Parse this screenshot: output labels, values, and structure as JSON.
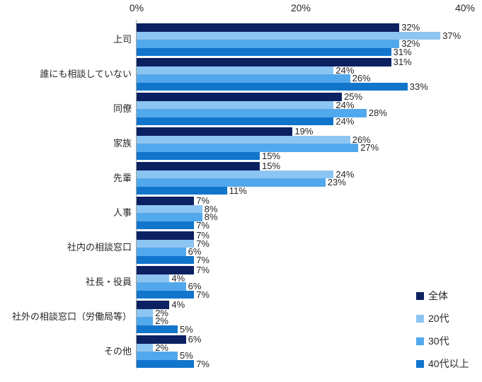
{
  "chart_data": {
    "type": "bar",
    "orientation": "horizontal",
    "title": "",
    "categories": [
      "上司",
      "誰にも相談していない",
      "同僚",
      "家族",
      "先輩",
      "人事",
      "社内の相談窓口",
      "社長・役員",
      "社外の相談窓口（労働局等）",
      "その他"
    ],
    "series": [
      {
        "name": "全体",
        "color": "#0B2161",
        "values": [
          32,
          31,
          25,
          19,
          15,
          7,
          7,
          7,
          4,
          6
        ]
      },
      {
        "name": "20代",
        "color": "#8DC5F2",
        "values": [
          37,
          24,
          24,
          26,
          24,
          8,
          7,
          4,
          2,
          2
        ]
      },
      {
        "name": "30代",
        "color": "#52A8EC",
        "values": [
          32,
          26,
          28,
          27,
          23,
          8,
          6,
          6,
          2,
          5
        ]
      },
      {
        "name": "40代以上",
        "color": "#1175CC",
        "values": [
          31,
          33,
          24,
          15,
          11,
          7,
          7,
          7,
          5,
          7
        ]
      }
    ],
    "x_axis": {
      "min": 0,
      "max": 40,
      "tick_values": [
        0,
        20,
        40
      ],
      "tick_labels": [
        "0%",
        "20%",
        "40%"
      ]
    },
    "value_label_suffix": "%",
    "legend_position": "bottom-right",
    "grid": false
  },
  "style": {
    "axis_line_color": "#a6a6a6",
    "text_color": "#262626",
    "background": "#ffffff"
  }
}
